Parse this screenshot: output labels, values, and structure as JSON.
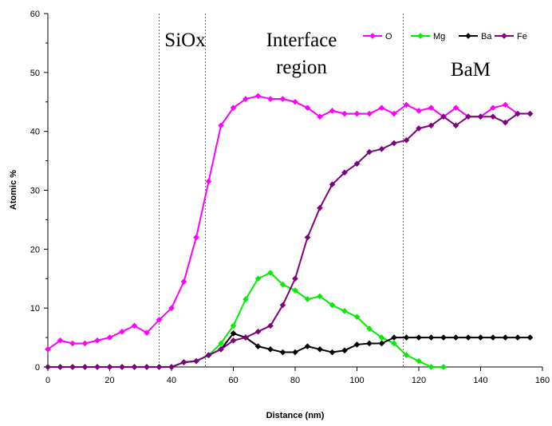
{
  "chart_data": {
    "type": "line",
    "xlabel": "Distance (nm)",
    "ylabel": "Atomic %",
    "xlim": [
      0,
      160
    ],
    "ylim": [
      0,
      60
    ],
    "xticks": [
      0,
      20,
      40,
      60,
      80,
      100,
      120,
      140,
      160
    ],
    "yticks": [
      0,
      10,
      20,
      30,
      40,
      50,
      60
    ],
    "grid": false,
    "legend_position": "top-right",
    "region_labels": [
      {
        "text": "SiOx",
        "lines": [
          "SiOx"
        ]
      },
      {
        "text": "Interface region",
        "lines": [
          "Interface",
          "region"
        ]
      },
      {
        "text": "BaM",
        "lines": [
          "BaM"
        ]
      }
    ],
    "region_boundaries": [
      36,
      51,
      115
    ],
    "x": [
      0,
      4,
      8,
      12,
      16,
      20,
      24,
      28,
      32,
      36,
      40,
      44,
      48,
      52,
      56,
      60,
      64,
      68,
      72,
      76,
      80,
      84,
      88,
      92,
      96,
      100,
      104,
      108,
      112,
      116,
      120,
      124,
      128,
      132,
      136,
      140,
      144,
      148,
      152,
      156
    ],
    "series": [
      {
        "name": "O",
        "color": "#ff00ff",
        "values": [
          3,
          4.5,
          4,
          4,
          4.5,
          5,
          6,
          7,
          5.8,
          8,
          10,
          14.5,
          22,
          31.5,
          41,
          44,
          45.5,
          46,
          45.5,
          45.5,
          45,
          44,
          42.5,
          43.5,
          43,
          43,
          43,
          44,
          43,
          44.5,
          43.5,
          44,
          42.5,
          44,
          42.5,
          42.5,
          44,
          44.5,
          43,
          43
        ]
      },
      {
        "name": "Mg",
        "color": "#00ee00",
        "values": [
          0,
          0,
          0,
          0,
          0,
          0,
          0,
          0,
          0,
          0,
          0,
          0.8,
          1,
          2,
          4,
          7,
          11.5,
          15,
          16,
          14,
          13,
          11.5,
          12,
          10.5,
          9.5,
          8.5,
          6.5,
          5,
          4,
          2,
          1,
          0,
          0,
          null,
          null,
          null,
          null,
          null,
          null,
          null
        ]
      },
      {
        "name": "Ba",
        "color": "#000000",
        "values": [
          0,
          0,
          0,
          0,
          0,
          0,
          0,
          0,
          0,
          0,
          0,
          0.8,
          1,
          2,
          3,
          5.7,
          5,
          3.5,
          3,
          2.5,
          2.5,
          3.5,
          3,
          2.5,
          2.8,
          3.8,
          4,
          4,
          5,
          5,
          5,
          5,
          5,
          5,
          5,
          5,
          5,
          5,
          5,
          5
        ]
      },
      {
        "name": "Fe",
        "color": "#800080",
        "values": [
          0,
          0,
          0,
          0,
          0,
          0,
          0,
          0,
          0,
          0,
          0,
          0.8,
          1,
          2,
          3,
          4.5,
          5,
          6,
          7,
          10.5,
          15,
          22,
          27,
          31,
          33,
          34.5,
          36.5,
          37,
          38,
          38.5,
          40.5,
          41,
          42.5,
          41,
          42.5,
          42.5,
          42.5,
          41.5,
          43,
          43
        ]
      }
    ]
  }
}
